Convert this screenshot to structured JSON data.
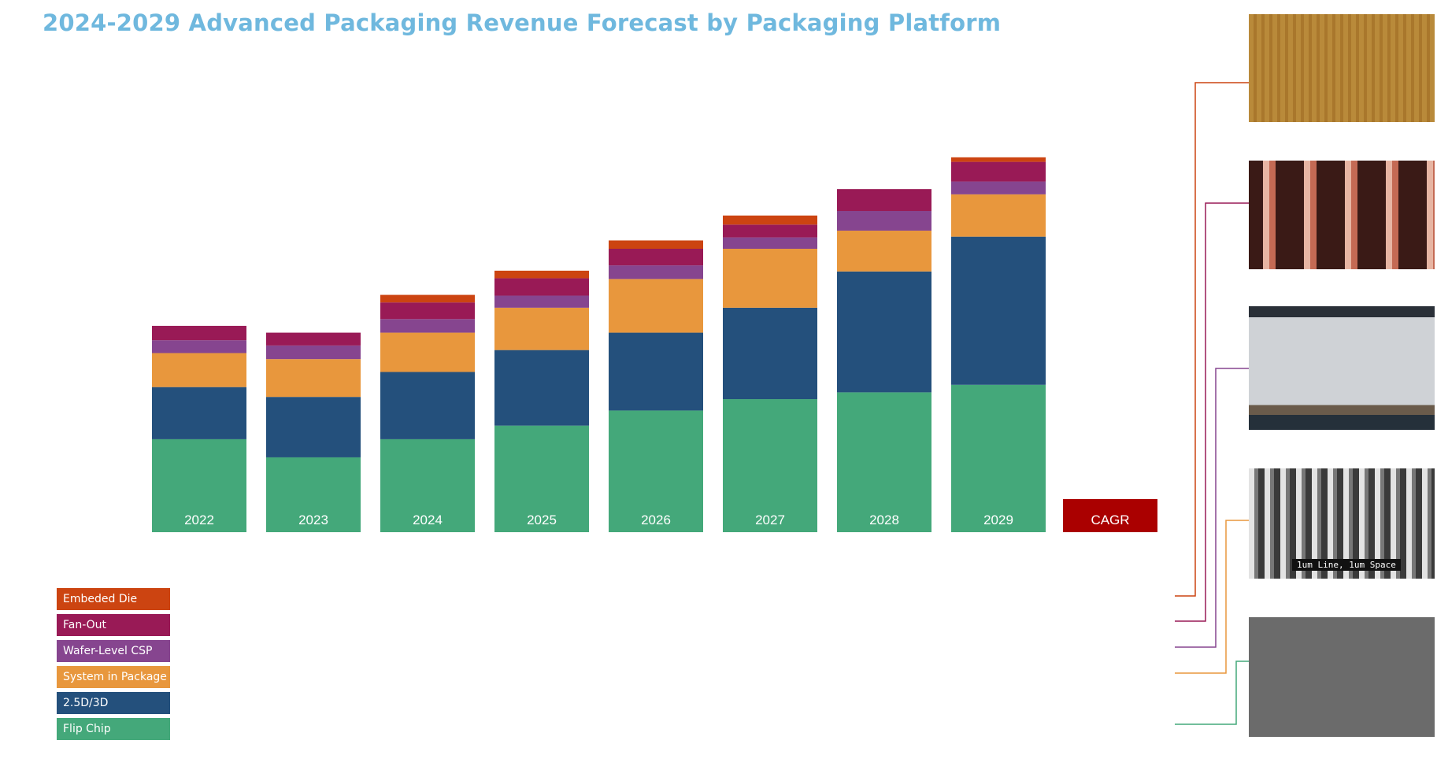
{
  "title": "2024-2029 Advanced Packaging Revenue Forecast by Packaging Platform",
  "cagr_label": "CAGR",
  "legend": [
    {
      "name": "Embeded Die",
      "color": "#cc4411"
    },
    {
      "name": "Fan-Out",
      "color": "#991a56"
    },
    {
      "name": "Wafer-Level CSP",
      "color": "#86458f"
    },
    {
      "name": "System in Package",
      "color": "#e8973d"
    },
    {
      "name": "2.5D/3D",
      "color": "#24507c"
    },
    {
      "name": "Flip Chip",
      "color": "#44a87a"
    }
  ],
  "cagr_color": "#aa0000",
  "thumbnails": [
    {
      "caption": ""
    },
    {
      "caption": ""
    },
    {
      "caption": ""
    },
    {
      "caption": "1um Line, 1um Space"
    },
    {
      "caption": ""
    }
  ],
  "chart_data": {
    "type": "bar",
    "stacked": true,
    "categories": [
      "2022",
      "2023",
      "2024",
      "2025",
      "2026",
      "2027",
      "2028",
      "2029"
    ],
    "series": [
      {
        "name": "Flip Chip",
        "values": [
          123,
          99,
          123,
          141,
          161,
          176,
          185,
          195
        ]
      },
      {
        "name": "2.5D/3D",
        "values": [
          69,
          80,
          89,
          100,
          103,
          121,
          160,
          196
        ]
      },
      {
        "name": "System in Package",
        "values": [
          45,
          50,
          52,
          56,
          71,
          78,
          54,
          56
        ]
      },
      {
        "name": "Wafer-Level CSP",
        "values": [
          17,
          18,
          18,
          16,
          18,
          15,
          26,
          17
        ]
      },
      {
        "name": "Fan-Out",
        "values": [
          19,
          17,
          22,
          23,
          22,
          17,
          29,
          26
        ]
      },
      {
        "name": "Embeded Die",
        "values": [
          0,
          0,
          10,
          10,
          11,
          12,
          0,
          6
        ]
      }
    ],
    "title": "2024-2029 Advanced Packaging Revenue Forecast by Packaging Platform",
    "xlabel": "",
    "ylabel": "",
    "ylim": [
      0,
      500
    ],
    "grid": false,
    "legend_position": "bottom-left"
  }
}
